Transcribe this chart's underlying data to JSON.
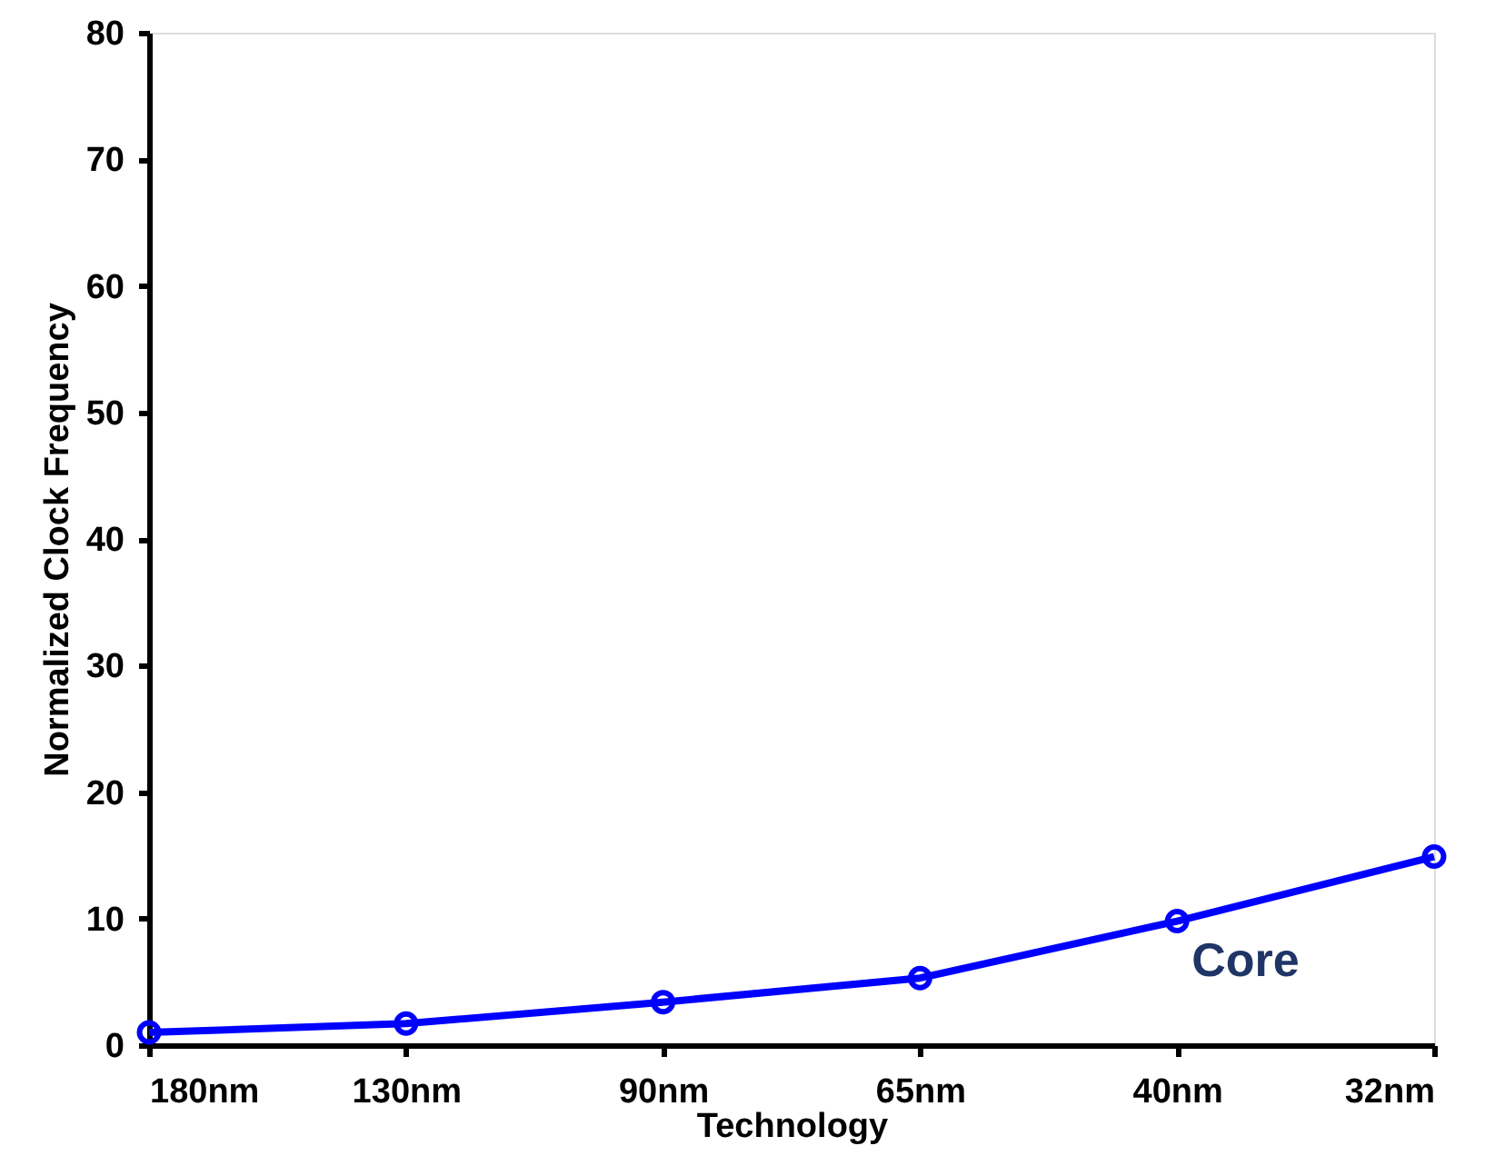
{
  "chart_data": {
    "type": "line",
    "xlabel": "Technology",
    "ylabel": "Normalized Clock Frequency",
    "categories": [
      "180nm",
      "130nm",
      "90nm",
      "65nm",
      "40nm",
      "32nm"
    ],
    "series": [
      {
        "name": "Core",
        "color": "#0000ff",
        "values": [
          1,
          1.7,
          3.4,
          5.3,
          9.8,
          14.9
        ]
      }
    ],
    "ylim": [
      0,
      80
    ],
    "yticks": [
      0,
      10,
      20,
      30,
      40,
      50,
      60,
      70,
      80
    ],
    "grid": false,
    "legend": false,
    "marker": "circle",
    "line_style": "solid"
  }
}
